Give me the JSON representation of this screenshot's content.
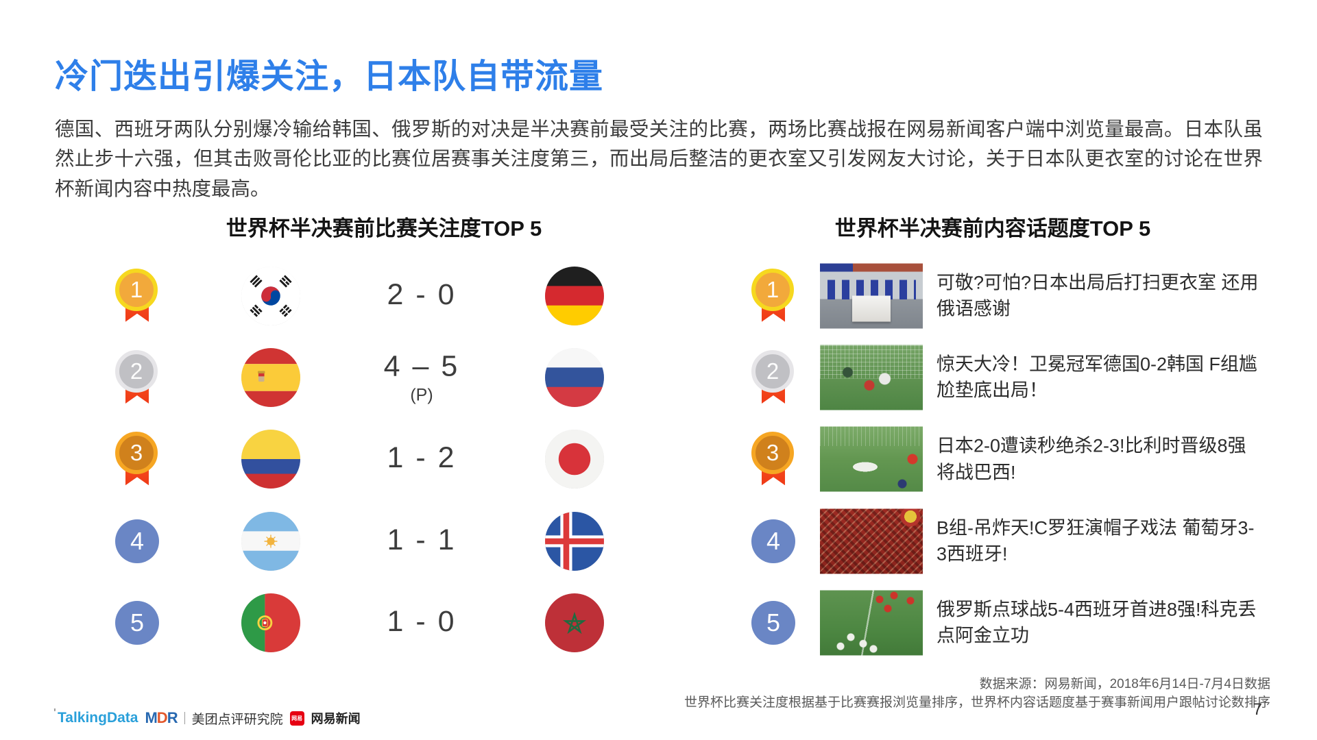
{
  "page": {
    "title": "冷门迭出引爆关注，日本队自带流量",
    "body": "德国、西班牙两队分别爆冷输给韩国、俄罗斯的对决是半决赛前最受关注的比赛，两场比赛战报在网易新闻客户端中浏览量最高。日本队虽然止步十六强，但其击败哥伦比亚的比赛位居赛事关注度第三，而出局后整洁的更衣室又引发网友大讨论，关于日本队更衣室的讨论在世界杯新闻内容中热度最高。",
    "page_number": "7"
  },
  "left_section": {
    "title": "世界杯半决赛前比赛关注度TOP 5",
    "rows": [
      {
        "rank": "1",
        "team1": "south-korea",
        "score": "2 - 0",
        "score_note": "",
        "team2": "germany"
      },
      {
        "rank": "2",
        "team1": "spain",
        "score": "4 – 5",
        "score_note": "(P)",
        "team2": "russia"
      },
      {
        "rank": "3",
        "team1": "colombia",
        "score": "1 - 2",
        "score_note": "",
        "team2": "japan"
      },
      {
        "rank": "4",
        "team1": "argentina",
        "score": "1 - 1",
        "score_note": "",
        "team2": "iceland"
      },
      {
        "rank": "5",
        "team1": "portugal",
        "score": "1 - 0",
        "score_note": "",
        "team2": "morocco"
      }
    ]
  },
  "right_section": {
    "title": "世界杯半决赛前内容话题度TOP 5",
    "rows": [
      {
        "rank": "1",
        "thumbnail": "japan-locker-room",
        "headline": "可敬?可怕?日本出局后打扫更衣室 还用俄语感谢"
      },
      {
        "rank": "2",
        "thumbnail": "germany-vs-korea",
        "headline": "惊天大冷！卫冕冠军德国0-2韩国 F组尴尬垫底出局！"
      },
      {
        "rank": "3",
        "thumbnail": "japan-vs-belgium",
        "headline": "日本2-0遭读秒绝杀2-3!比利时晋级8强将战巴西!"
      },
      {
        "rank": "4",
        "thumbnail": "portugal-spain-fans",
        "headline": "B组-吊炸天!C罗狂演帽子戏法 葡萄牙3-3西班牙!"
      },
      {
        "rank": "5",
        "thumbnail": "russia-spain-penalties",
        "headline": "俄罗斯点球战5-4西班牙首进8强!科克丢点阿金立功"
      }
    ]
  },
  "footer": {
    "source_line1": "数据来源：网易新闻，2018年6月14日-7月4日数据",
    "source_line2": "世界杯比赛关注度根据基于比赛赛报浏览量排序，世界杯内容话题度基于赛事新闻用户跟帖讨论数排序",
    "logos": {
      "talkingdata": "TalkingData",
      "mdr_m": "M",
      "mdr_d": "D",
      "mdr_r": "R",
      "meituan_label": "美团点评研究院",
      "netease_icon": "网易",
      "netease_label": "网易新闻"
    }
  },
  "colors": {
    "accent_blue": "#2E7FE9",
    "medal_gold": "#F6D81F",
    "medal_silver": "#E6E5E8",
    "medal_bronze": "#F6A623",
    "ribbon_red": "#F4511E",
    "rank_circle_blue": "#6A86C5"
  }
}
